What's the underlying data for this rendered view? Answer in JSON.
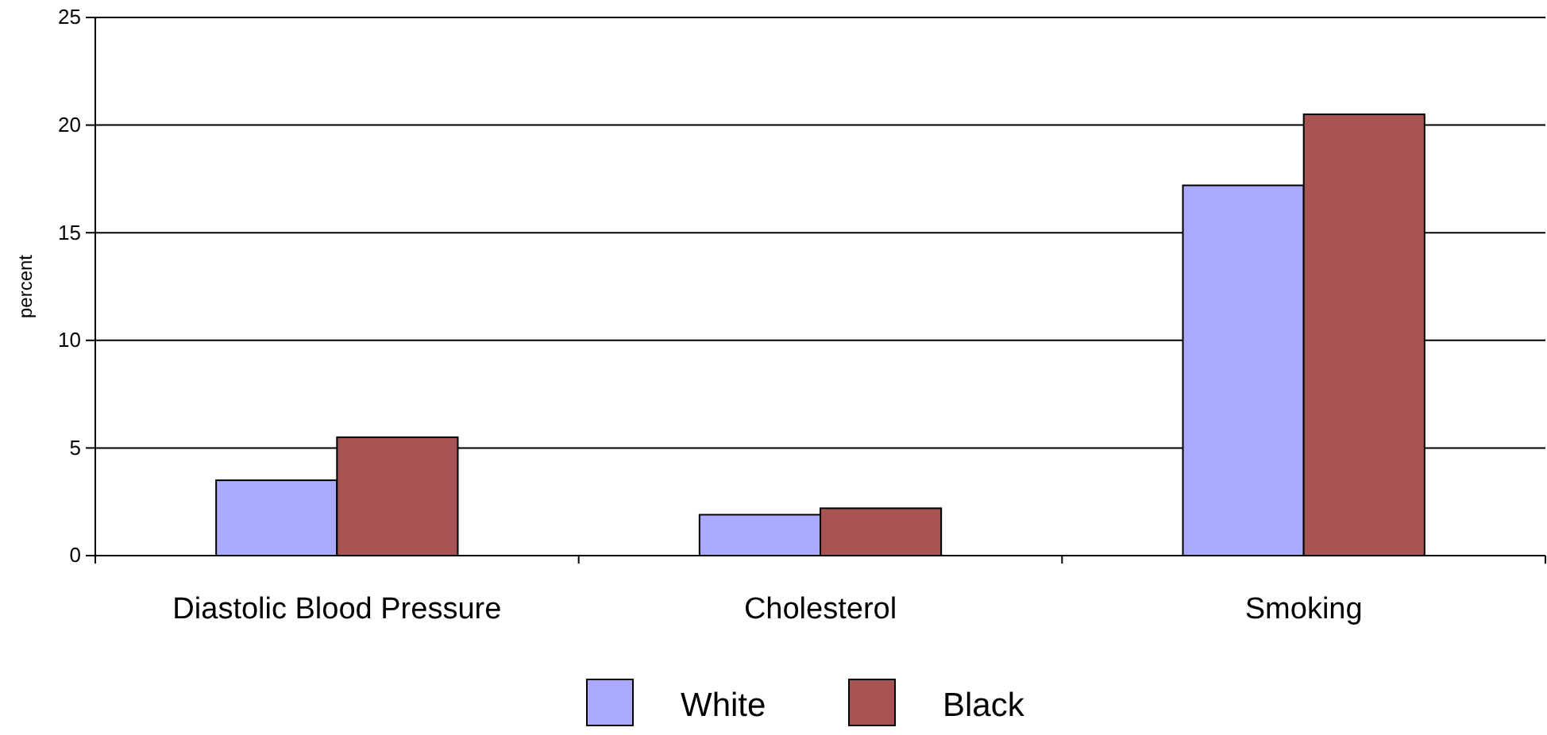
{
  "chart_data": {
    "type": "bar",
    "ylabel": "percent",
    "categories": [
      "Diastolic Blood Pressure",
      "Cholesterol",
      "Smoking"
    ],
    "series": [
      {
        "name": "White",
        "color": "#aaaaff",
        "values": [
          3.5,
          1.9,
          17.2
        ]
      },
      {
        "name": "Black",
        "color": "#a85454",
        "values": [
          5.5,
          2.2,
          20.5
        ]
      }
    ],
    "ylim": [
      0,
      25
    ],
    "yticks": [
      0,
      5,
      10,
      15,
      20,
      25
    ],
    "grid": "y",
    "legend": "bottom"
  }
}
